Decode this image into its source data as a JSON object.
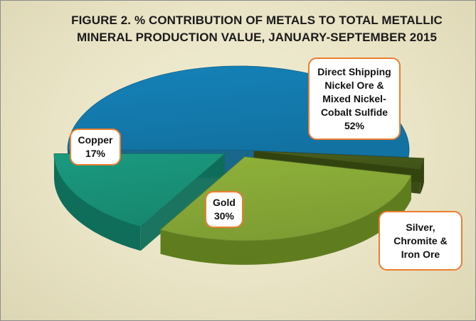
{
  "chart_data": {
    "type": "pie",
    "title_lines": [
      "FIGURE 2.  % CONTRIBUTION OF METALS  TO TOTAL METALLIC",
      "MINERAL PRODUCTION VALUE, JANUARY-SEPTEMBER 2015"
    ],
    "slices": [
      {
        "key": "nickel",
        "label_lines": [
          "Direct Shipping",
          "Nickel Ore &",
          "Mixed Nickel-",
          "Cobalt Sulfide"
        ],
        "value": 52,
        "value_label": "52%",
        "color": "#1582b8",
        "side_color": "#0e5f88"
      },
      {
        "key": "silver",
        "label_lines": [
          "Silver,",
          "Chromite &",
          "Iron Ore"
        ],
        "value": 1,
        "value_label": "",
        "color": "#4a5f1c",
        "side_color": "#33430f"
      },
      {
        "key": "gold",
        "label_lines": [
          "Gold"
        ],
        "value": 30,
        "value_label": "30%",
        "color": "#8fb23a",
        "side_color": "#5f7d1e"
      },
      {
        "key": "copper",
        "label_lines": [
          "Copper"
        ],
        "value": 17,
        "value_label": "17%",
        "color": "#1a9a7f",
        "side_color": "#0f6e5a"
      }
    ],
    "start_angle_deg": 180,
    "direction": "clockwise",
    "exploded": [
      "silver",
      "gold",
      "copper"
    ],
    "style": "3d",
    "label_style": "callout-rounded-box"
  }
}
